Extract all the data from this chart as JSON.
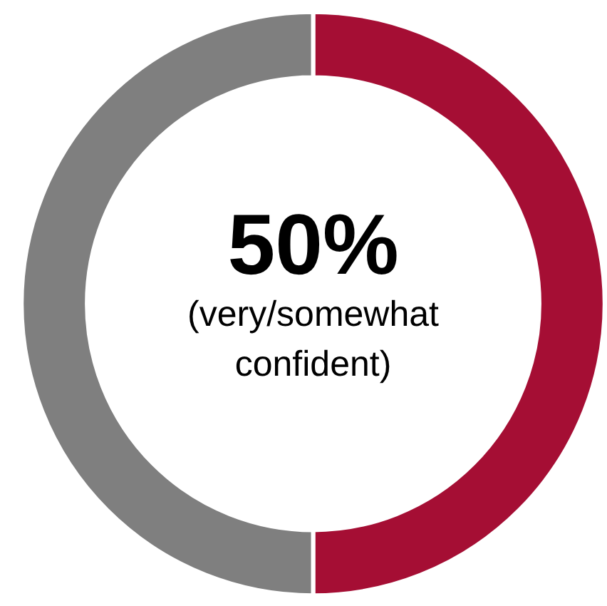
{
  "chart_data": {
    "type": "donut",
    "categories": [
      null,
      null
    ],
    "values": [
      50,
      50
    ],
    "colors": [
      "#a50e34",
      "#7f7f7f"
    ],
    "annotations": [
      "50%",
      "(very/somewhat confident)"
    ]
  }
}
